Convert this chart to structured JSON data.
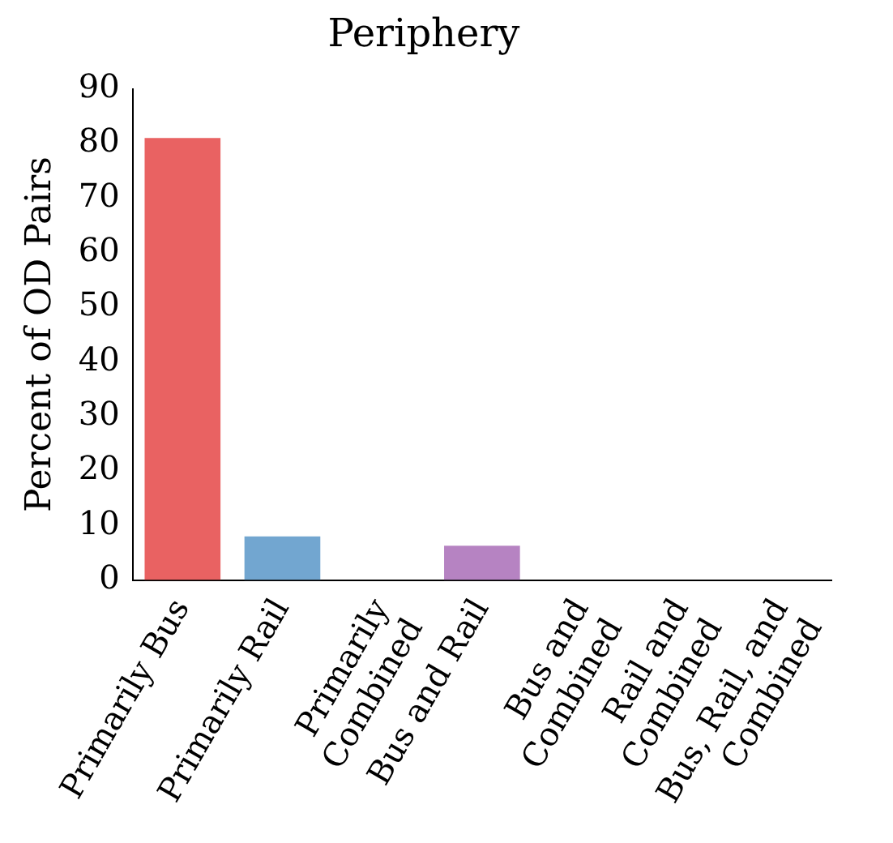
{
  "chart_data": {
    "type": "bar",
    "title": "Periphery",
    "ylabel": "Percent of OD Pairs",
    "categories": [
      "Primarily Bus",
      "Primarily Rail",
      "Primarily Combined",
      "Bus and Rail",
      "Bus and Combined",
      "Rail and Combined",
      "Bus, Rail, and Combined"
    ],
    "values": [
      81,
      8,
      0,
      6.3,
      0,
      0,
      0
    ],
    "colors": [
      "#e96262",
      "#72a6d0",
      "#77c07a",
      "#b683c2",
      "#f5a04a",
      "#f0e060",
      "#b07a50"
    ],
    "ylim": [
      0,
      90
    ],
    "yticks": [
      0,
      10,
      20,
      30,
      40,
      50,
      60,
      70,
      80,
      90
    ],
    "grid": false,
    "legend": false
  }
}
